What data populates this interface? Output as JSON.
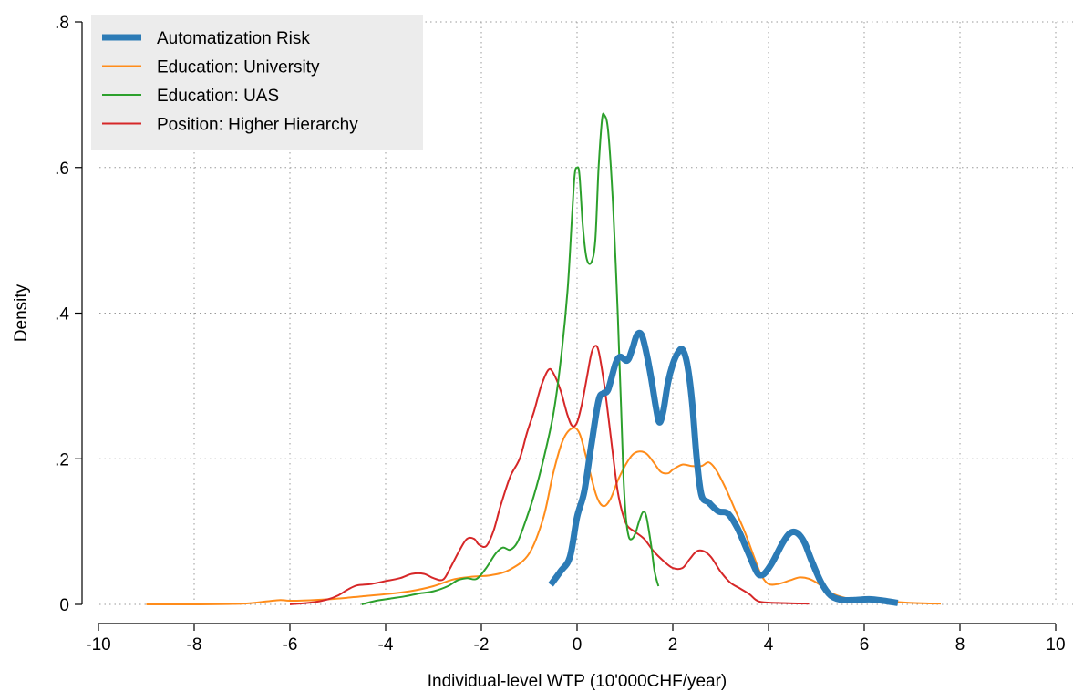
{
  "chart_data": {
    "type": "line",
    "title": "",
    "xlabel": "Individual-level WTP (10'000CHF/year)",
    "ylabel": "Density",
    "xlim": [
      -10,
      10
    ],
    "ylim": [
      0,
      0.8
    ],
    "x_ticks": [
      -10,
      -8,
      -6,
      -4,
      -2,
      0,
      2,
      4,
      6,
      8,
      10
    ],
    "x_tick_labels": [
      "-10",
      "-8",
      "-6",
      "-4",
      "-2",
      "0",
      "2",
      "4",
      "6",
      "8",
      "10"
    ],
    "y_ticks": [
      0,
      0.2,
      0.4,
      0.6,
      0.8
    ],
    "y_tick_labels": [
      "0",
      ".2",
      ".4",
      ".6",
      ".8"
    ],
    "grid": true,
    "legend_position": "top-left",
    "series": [
      {
        "name": "Automatization Risk",
        "color": "#2c7bb6",
        "linewidth": "thick",
        "points": [
          [
            -0.55,
            0.027
          ],
          [
            -0.35,
            0.045
          ],
          [
            -0.15,
            0.065
          ],
          [
            0,
            0.12
          ],
          [
            0.15,
            0.155
          ],
          [
            0.3,
            0.22
          ],
          [
            0.45,
            0.28
          ],
          [
            0.55,
            0.29
          ],
          [
            0.65,
            0.295
          ],
          [
            0.8,
            0.33
          ],
          [
            0.9,
            0.34
          ],
          [
            1.05,
            0.335
          ],
          [
            1.15,
            0.35
          ],
          [
            1.25,
            0.37
          ],
          [
            1.35,
            0.37
          ],
          [
            1.45,
            0.345
          ],
          [
            1.55,
            0.31
          ],
          [
            1.65,
            0.27
          ],
          [
            1.72,
            0.25
          ],
          [
            1.8,
            0.265
          ],
          [
            1.9,
            0.305
          ],
          [
            2.0,
            0.33
          ],
          [
            2.1,
            0.345
          ],
          [
            2.2,
            0.35
          ],
          [
            2.3,
            0.33
          ],
          [
            2.4,
            0.28
          ],
          [
            2.5,
            0.2
          ],
          [
            2.6,
            0.15
          ],
          [
            2.75,
            0.14
          ],
          [
            2.95,
            0.128
          ],
          [
            3.15,
            0.125
          ],
          [
            3.35,
            0.105
          ],
          [
            3.55,
            0.075
          ],
          [
            3.75,
            0.045
          ],
          [
            3.85,
            0.04
          ],
          [
            3.95,
            0.045
          ],
          [
            4.1,
            0.06
          ],
          [
            4.3,
            0.085
          ],
          [
            4.45,
            0.098
          ],
          [
            4.6,
            0.098
          ],
          [
            4.75,
            0.085
          ],
          [
            4.9,
            0.06
          ],
          [
            5.1,
            0.03
          ],
          [
            5.3,
            0.012
          ],
          [
            5.55,
            0.006
          ],
          [
            5.8,
            0.006
          ],
          [
            6.1,
            0.007
          ],
          [
            6.4,
            0.005
          ],
          [
            6.7,
            0.002
          ]
        ]
      },
      {
        "name": "Education: University",
        "color": "#ff8c1a",
        "linewidth": "thin",
        "points": [
          [
            -9,
            0.0
          ],
          [
            -8,
            0.0
          ],
          [
            -7,
            0.001
          ],
          [
            -6.5,
            0.004
          ],
          [
            -6.2,
            0.006
          ],
          [
            -6.0,
            0.005
          ],
          [
            -5.5,
            0.006
          ],
          [
            -5,
            0.008
          ],
          [
            -4.5,
            0.011
          ],
          [
            -4.0,
            0.014
          ],
          [
            -3.5,
            0.018
          ],
          [
            -3.0,
            0.025
          ],
          [
            -2.6,
            0.034
          ],
          [
            -2.2,
            0.038
          ],
          [
            -1.8,
            0.04
          ],
          [
            -1.4,
            0.048
          ],
          [
            -1.0,
            0.07
          ],
          [
            -0.7,
            0.12
          ],
          [
            -0.5,
            0.18
          ],
          [
            -0.3,
            0.225
          ],
          [
            -0.1,
            0.242
          ],
          [
            0.05,
            0.235
          ],
          [
            0.2,
            0.2
          ],
          [
            0.4,
            0.15
          ],
          [
            0.55,
            0.135
          ],
          [
            0.7,
            0.145
          ],
          [
            0.85,
            0.17
          ],
          [
            1.0,
            0.19
          ],
          [
            1.15,
            0.205
          ],
          [
            1.3,
            0.21
          ],
          [
            1.45,
            0.207
          ],
          [
            1.6,
            0.195
          ],
          [
            1.75,
            0.182
          ],
          [
            1.9,
            0.18
          ],
          [
            2.0,
            0.185
          ],
          [
            2.2,
            0.192
          ],
          [
            2.4,
            0.19
          ],
          [
            2.6,
            0.19
          ],
          [
            2.75,
            0.195
          ],
          [
            2.9,
            0.185
          ],
          [
            3.1,
            0.16
          ],
          [
            3.3,
            0.13
          ],
          [
            3.5,
            0.1
          ],
          [
            3.7,
            0.065
          ],
          [
            3.85,
            0.04
          ],
          [
            4.0,
            0.028
          ],
          [
            4.2,
            0.028
          ],
          [
            4.45,
            0.033
          ],
          [
            4.65,
            0.037
          ],
          [
            4.85,
            0.035
          ],
          [
            5.05,
            0.028
          ],
          [
            5.3,
            0.016
          ],
          [
            5.6,
            0.009
          ],
          [
            6.0,
            0.006
          ],
          [
            6.5,
            0.004
          ],
          [
            7.0,
            0.002
          ],
          [
            7.6,
            0.001
          ]
        ]
      },
      {
        "name": "Education: UAS",
        "color": "#2ca02c",
        "linewidth": "thin",
        "points": [
          [
            -4.5,
            0.0
          ],
          [
            -4.2,
            0.005
          ],
          [
            -3.9,
            0.008
          ],
          [
            -3.6,
            0.011
          ],
          [
            -3.3,
            0.015
          ],
          [
            -3.0,
            0.018
          ],
          [
            -2.7,
            0.025
          ],
          [
            -2.5,
            0.033
          ],
          [
            -2.3,
            0.036
          ],
          [
            -2.1,
            0.035
          ],
          [
            -1.9,
            0.05
          ],
          [
            -1.7,
            0.07
          ],
          [
            -1.55,
            0.078
          ],
          [
            -1.4,
            0.075
          ],
          [
            -1.25,
            0.085
          ],
          [
            -1.1,
            0.11
          ],
          [
            -0.9,
            0.15
          ],
          [
            -0.7,
            0.2
          ],
          [
            -0.5,
            0.26
          ],
          [
            -0.35,
            0.33
          ],
          [
            -0.2,
            0.43
          ],
          [
            -0.1,
            0.54
          ],
          [
            -0.05,
            0.59
          ],
          [
            0.0,
            0.6
          ],
          [
            0.05,
            0.59
          ],
          [
            0.12,
            0.52
          ],
          [
            0.2,
            0.475
          ],
          [
            0.3,
            0.47
          ],
          [
            0.38,
            0.5
          ],
          [
            0.45,
            0.6
          ],
          [
            0.52,
            0.665
          ],
          [
            0.57,
            0.672
          ],
          [
            0.65,
            0.65
          ],
          [
            0.75,
            0.55
          ],
          [
            0.85,
            0.4
          ],
          [
            0.92,
            0.27
          ],
          [
            0.97,
            0.175
          ],
          [
            1.02,
            0.12
          ],
          [
            1.08,
            0.093
          ],
          [
            1.15,
            0.09
          ],
          [
            1.22,
            0.098
          ],
          [
            1.3,
            0.115
          ],
          [
            1.38,
            0.127
          ],
          [
            1.45,
            0.12
          ],
          [
            1.55,
            0.08
          ],
          [
            1.62,
            0.045
          ],
          [
            1.7,
            0.025
          ]
        ]
      },
      {
        "name": "Position: Higher Hierarchy",
        "color": "#d62728",
        "linewidth": "thin",
        "points": [
          [
            -6,
            0.0
          ],
          [
            -5.5,
            0.003
          ],
          [
            -5.2,
            0.007
          ],
          [
            -5.0,
            0.012
          ],
          [
            -4.8,
            0.02
          ],
          [
            -4.6,
            0.026
          ],
          [
            -4.3,
            0.028
          ],
          [
            -4.0,
            0.032
          ],
          [
            -3.7,
            0.036
          ],
          [
            -3.45,
            0.042
          ],
          [
            -3.2,
            0.042
          ],
          [
            -3.0,
            0.036
          ],
          [
            -2.8,
            0.034
          ],
          [
            -2.65,
            0.05
          ],
          [
            -2.45,
            0.075
          ],
          [
            -2.3,
            0.09
          ],
          [
            -2.15,
            0.09
          ],
          [
            -2.05,
            0.082
          ],
          [
            -1.9,
            0.08
          ],
          [
            -1.75,
            0.1
          ],
          [
            -1.6,
            0.135
          ],
          [
            -1.4,
            0.175
          ],
          [
            -1.2,
            0.2
          ],
          [
            -1.05,
            0.235
          ],
          [
            -0.9,
            0.265
          ],
          [
            -0.75,
            0.3
          ],
          [
            -0.6,
            0.322
          ],
          [
            -0.5,
            0.318
          ],
          [
            -0.35,
            0.295
          ],
          [
            -0.2,
            0.26
          ],
          [
            -0.1,
            0.245
          ],
          [
            0.0,
            0.25
          ],
          [
            0.1,
            0.275
          ],
          [
            0.2,
            0.31
          ],
          [
            0.3,
            0.345
          ],
          [
            0.38,
            0.355
          ],
          [
            0.45,
            0.348
          ],
          [
            0.55,
            0.31
          ],
          [
            0.65,
            0.26
          ],
          [
            0.75,
            0.205
          ],
          [
            0.85,
            0.155
          ],
          [
            0.95,
            0.125
          ],
          [
            1.05,
            0.108
          ],
          [
            1.2,
            0.1
          ],
          [
            1.4,
            0.09
          ],
          [
            1.6,
            0.073
          ],
          [
            1.8,
            0.06
          ],
          [
            2.0,
            0.05
          ],
          [
            2.2,
            0.05
          ],
          [
            2.35,
            0.062
          ],
          [
            2.5,
            0.073
          ],
          [
            2.65,
            0.073
          ],
          [
            2.8,
            0.065
          ],
          [
            3.0,
            0.045
          ],
          [
            3.2,
            0.03
          ],
          [
            3.4,
            0.022
          ],
          [
            3.6,
            0.014
          ],
          [
            3.8,
            0.004
          ],
          [
            4.2,
            0.002
          ],
          [
            4.85,
            0.001
          ]
        ]
      }
    ]
  }
}
